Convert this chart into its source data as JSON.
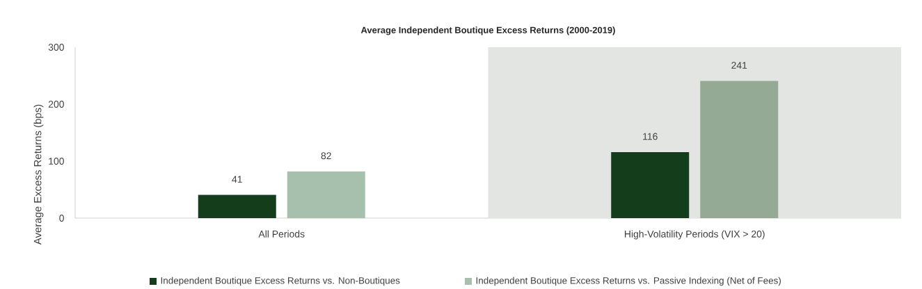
{
  "chart_data": {
    "type": "bar",
    "title": "Average Independent Boutique Excess Returns (2000-2019)",
    "ylabel": "Average Excess Returns (bps)",
    "categories": [
      "All Periods",
      "High-Volatility Periods (VIX > 20)"
    ],
    "series": [
      {
        "name": "Independent Boutique Excess Returns vs. Non-Boutiques",
        "color": "#143d1c",
        "values": [
          41,
          116
        ]
      },
      {
        "name": "Independent Boutique Excess Returns vs. Passive Indexing (Net of Fees)",
        "color": "#a7bfad",
        "colors": [
          "#a7bfad",
          "#94aa94"
        ],
        "values": [
          82,
          241
        ]
      }
    ],
    "bands": [
      {
        "axis": "x",
        "from": "High-Volatility Periods (VIX > 20)",
        "to": "High-Volatility Periods (VIX > 20)",
        "color": "#e3e5e2"
      }
    ],
    "ylim": [
      0,
      300
    ],
    "yticks": [
      0,
      100,
      200,
      300
    ],
    "data_labels": true,
    "legend": "bottom"
  }
}
